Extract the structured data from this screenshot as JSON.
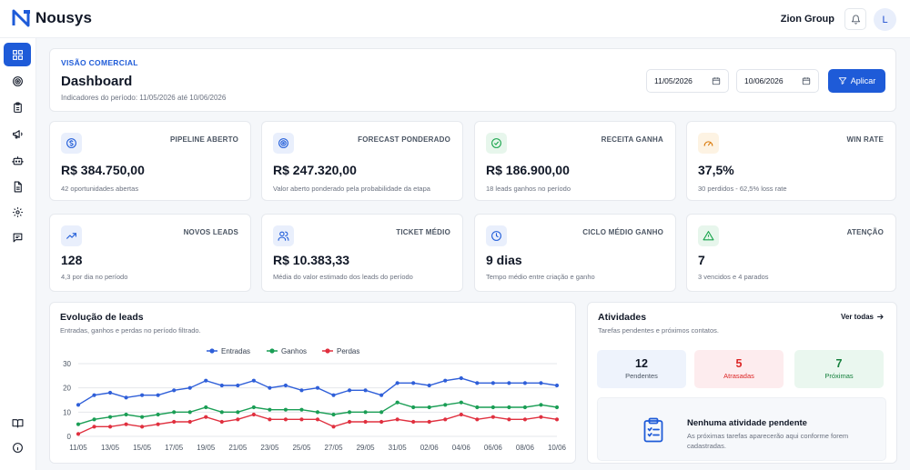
{
  "brand": {
    "name": "Nousys"
  },
  "topbar": {
    "company": "Zion Group",
    "avatar_initial": "L"
  },
  "sidebar": {
    "items": [
      "dashboard-icon",
      "target-icon",
      "clipboard-icon",
      "megaphone-icon",
      "robot-icon",
      "document-icon",
      "settings-icon",
      "chat-icon"
    ],
    "bottom_items": [
      "book-icon",
      "info-icon"
    ]
  },
  "header": {
    "eyebrow": "VISÃO COMERCIAL",
    "title": "Dashboard",
    "period": "Indicadores do período: 11/05/2026 até 10/06/2026",
    "date_from": "11/05/2026",
    "date_to": "10/06/2026",
    "apply_label": "Aplicar"
  },
  "kpis": [
    {
      "label": "PIPELINE ABERTO",
      "value": "R$ 384.750,00",
      "sub": "42 oportunidades abertas",
      "icon": "dollar-icon",
      "color": "#1e5bd8"
    },
    {
      "label": "FORECAST PONDERADO",
      "value": "R$ 247.320,00",
      "sub": "Valor aberto ponderado pela probabilidade da etapa",
      "icon": "target-icon",
      "color": "#1e5bd8"
    },
    {
      "label": "RECEITA GANHA",
      "value": "R$ 186.900,00",
      "sub": "18 leads ganhos no período",
      "icon": "check-circle-icon",
      "color": "#16a34a"
    },
    {
      "label": "WIN RATE",
      "value": "37,5%",
      "sub": "30 perdidos - 62,5% loss rate",
      "icon": "gauge-icon",
      "color": "#d97706"
    },
    {
      "label": "NOVOS LEADS",
      "value": "128",
      "sub": "4,3 por dia no período",
      "icon": "trending-up-icon",
      "color": "#1e5bd8"
    },
    {
      "label": "TICKET MÉDIO",
      "value": "R$ 10.383,33",
      "sub": "Média do valor estimado dos leads do período",
      "icon": "users-icon",
      "color": "#1e5bd8"
    },
    {
      "label": "CICLO MÉDIO GANHO",
      "value": "9 dias",
      "sub": "Tempo médio entre criação e ganho",
      "icon": "clock-icon",
      "color": "#1e5bd8"
    },
    {
      "label": "ATENÇÃO",
      "value": "7",
      "sub": "3 vencidos e 4 parados",
      "icon": "warning-icon",
      "color": "#16a34a"
    }
  ],
  "chart_card": {
    "title": "Evolução de leads",
    "subtitle": "Entradas, ganhos e perdas no período filtrado."
  },
  "chart_data": {
    "type": "line",
    "x": [
      "11/05",
      "12/05",
      "13/05",
      "14/05",
      "15/05",
      "16/05",
      "17/05",
      "18/05",
      "19/05",
      "20/05",
      "21/05",
      "22/05",
      "23/05",
      "24/05",
      "25/05",
      "26/05",
      "27/05",
      "28/05",
      "29/05",
      "30/05",
      "31/05",
      "01/06",
      "02/06",
      "03/06",
      "04/06",
      "05/06",
      "06/06",
      "07/06",
      "08/06",
      "09/06",
      "10/06"
    ],
    "tick_labels": [
      "11/05",
      "13/05",
      "15/05",
      "17/05",
      "19/05",
      "21/05",
      "23/05",
      "25/05",
      "27/05",
      "29/05",
      "31/05",
      "02/06",
      "04/06",
      "06/06",
      "08/06",
      "10/06"
    ],
    "ylim": [
      0,
      30
    ],
    "yticks": [
      0,
      10,
      20,
      30
    ],
    "grid": true,
    "legend_position": "top-center",
    "series": [
      {
        "name": "Entradas",
        "color": "#2f5fd9",
        "values": [
          13,
          17,
          18,
          16,
          17,
          17,
          19,
          20,
          23,
          21,
          21,
          23,
          20,
          21,
          19,
          20,
          17,
          19,
          19,
          17,
          22,
          22,
          21,
          23,
          24,
          22,
          22,
          22,
          22,
          22,
          21
        ]
      },
      {
        "name": "Ganhos",
        "color": "#1a9e55",
        "values": [
          5,
          7,
          8,
          9,
          8,
          9,
          10,
          10,
          12,
          10,
          10,
          12,
          11,
          11,
          11,
          10,
          9,
          10,
          10,
          10,
          14,
          12,
          12,
          13,
          14,
          12,
          12,
          12,
          12,
          13,
          12
        ]
      },
      {
        "name": "Perdas",
        "color": "#e0303f",
        "values": [
          1,
          4,
          4,
          5,
          4,
          5,
          6,
          6,
          8,
          6,
          7,
          9,
          7,
          7,
          7,
          7,
          4,
          6,
          6,
          6,
          7,
          6,
          6,
          7,
          9,
          7,
          8,
          7,
          7,
          8,
          7
        ]
      }
    ]
  },
  "activities": {
    "title": "Atividades",
    "subtitle": "Tarefas pendentes e próximos contatos.",
    "see_all": "Ver todas",
    "stats": [
      {
        "value": "12",
        "label": "Pendentes",
        "bg": "#eef3fc",
        "fg": "#111827",
        "label_fg": "#4b5563"
      },
      {
        "value": "5",
        "label": "Atrasadas",
        "bg": "#fdecee",
        "fg": "#dc2626",
        "label_fg": "#dc2626"
      },
      {
        "value": "7",
        "label": "Próximas",
        "bg": "#eaf7ef",
        "fg": "#15803d",
        "label_fg": "#15803d"
      }
    ],
    "empty_title": "Nenhuma atividade pendente",
    "empty_desc": "As próximas tarefas aparecerão aqui conforme forem cadastradas."
  }
}
